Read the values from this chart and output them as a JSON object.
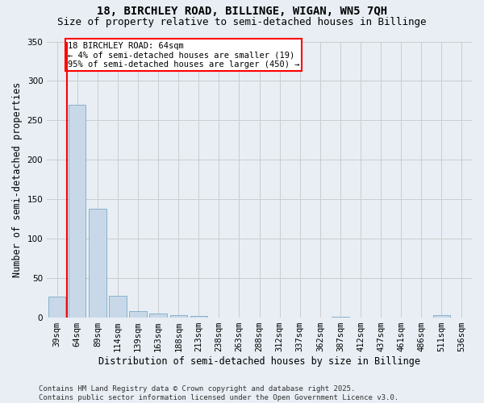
{
  "title": "18, BIRCHLEY ROAD, BILLINGE, WIGAN, WN5 7QH",
  "subtitle": "Size of property relative to semi-detached houses in Billinge",
  "xlabel": "Distribution of semi-detached houses by size in Billinge",
  "ylabel": "Number of semi-detached properties",
  "categories": [
    "39sqm",
    "64sqm",
    "89sqm",
    "114sqm",
    "139sqm",
    "163sqm",
    "188sqm",
    "213sqm",
    "238sqm",
    "263sqm",
    "288sqm",
    "312sqm",
    "337sqm",
    "362sqm",
    "387sqm",
    "412sqm",
    "437sqm",
    "461sqm",
    "486sqm",
    "511sqm",
    "536sqm"
  ],
  "values": [
    27,
    270,
    138,
    28,
    8,
    5,
    3,
    2,
    0,
    0,
    0,
    0,
    0,
    0,
    1,
    0,
    0,
    0,
    0,
    3,
    0
  ],
  "bar_color": "#c8d8e8",
  "bar_edge_color": "#7aaac8",
  "red_line_index": 1,
  "annotation_text": "18 BIRCHLEY ROAD: 64sqm\n← 4% of semi-detached houses are smaller (19)\n95% of semi-detached houses are larger (450) →",
  "annotation_box_color": "white",
  "annotation_box_edge_color": "red",
  "footer": "Contains HM Land Registry data © Crown copyright and database right 2025.\nContains public sector information licensed under the Open Government Licence v3.0.",
  "ylim": [
    0,
    350
  ],
  "grid_color": "#cccccc",
  "background_color": "#e8eef4",
  "title_fontsize": 10,
  "subtitle_fontsize": 9,
  "axis_label_fontsize": 8.5,
  "tick_fontsize": 7.5,
  "annotation_fontsize": 7.5,
  "footer_fontsize": 6.5,
  "yticks": [
    0,
    50,
    100,
    150,
    200,
    250,
    300,
    350
  ]
}
